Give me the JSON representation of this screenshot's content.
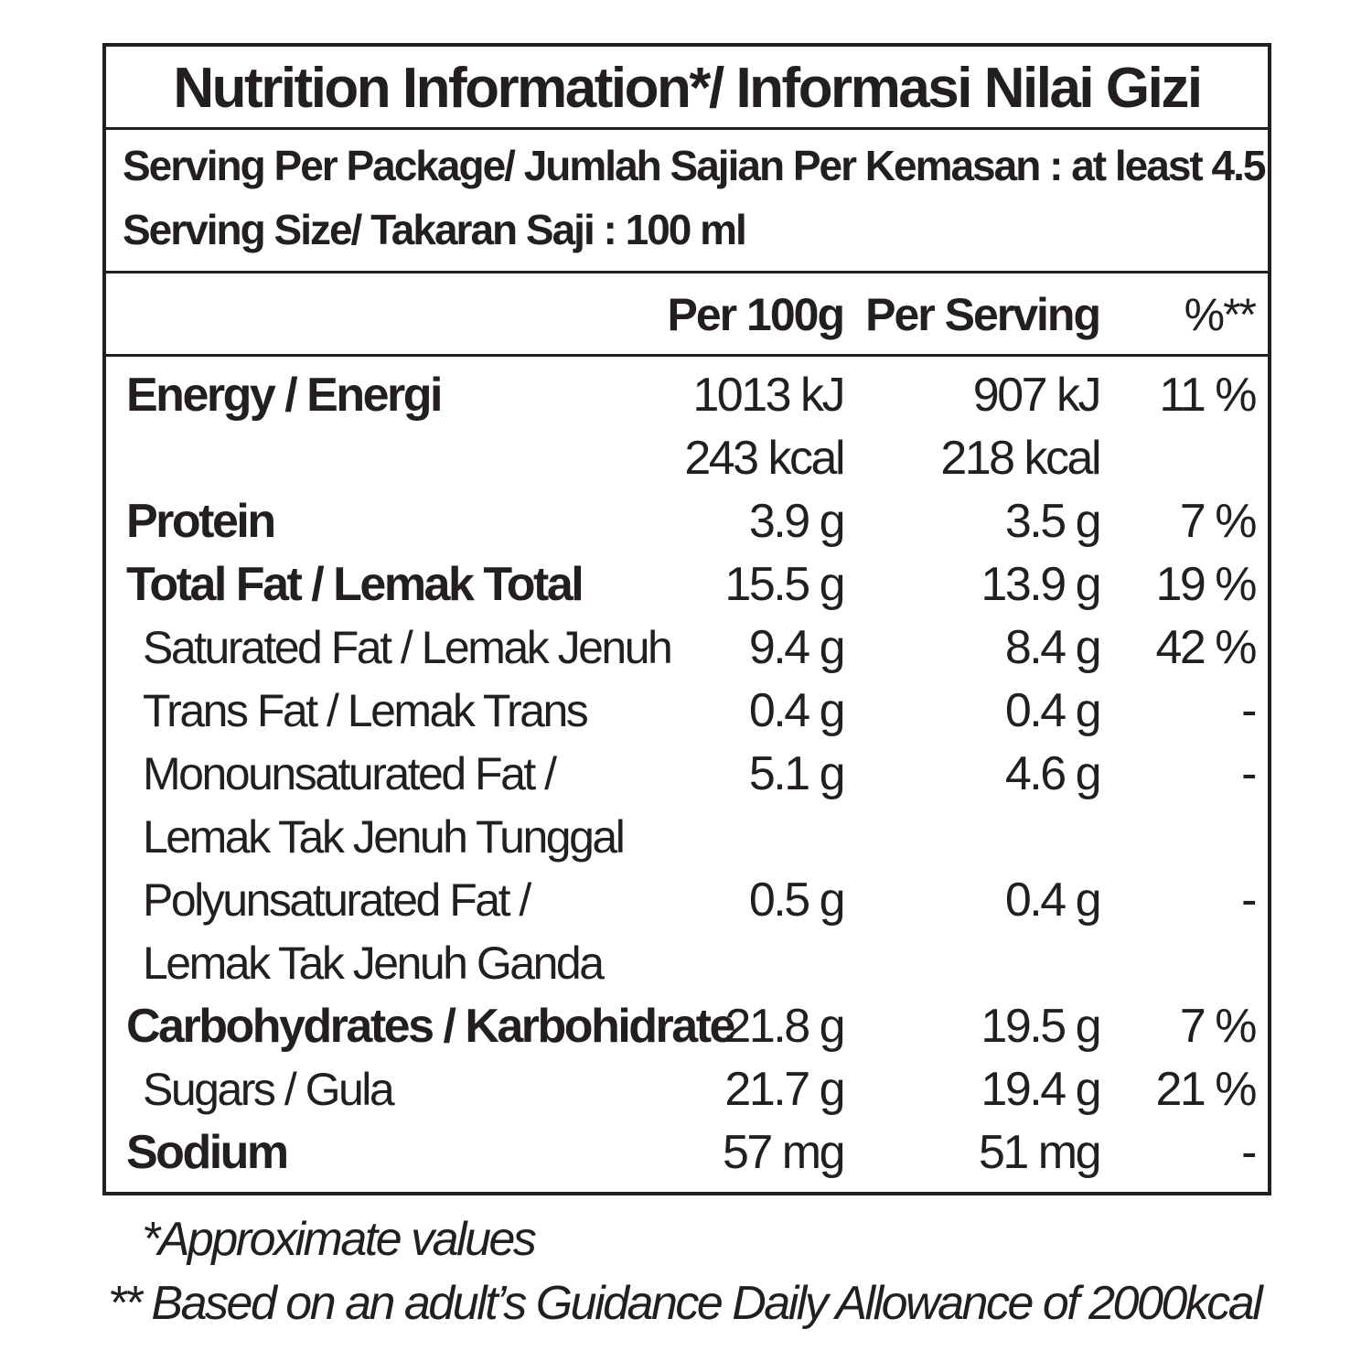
{
  "title": "Nutrition Information*/  Informasi Nilai Gizi",
  "serving_per_package": "Serving Per Package/ Jumlah Sajian Per Kemasan : at least 4.5",
  "serving_size": "Serving Size/ Takaran Saji : 100 ml",
  "columns": {
    "per100": "Per 100g",
    "per_serving": "Per Serving",
    "percent": "%**"
  },
  "rows": [
    {
      "label": "Energy / Energi",
      "per100": "1013 kJ",
      "serving": "907 kJ",
      "pct": "11 %"
    },
    {
      "label": "",
      "per100": "243 kcal",
      "serving": "218 kcal",
      "pct": ""
    },
    {
      "label": "Protein",
      "per100": "3.9 g",
      "serving": "3.5 g",
      "pct": "7 %"
    },
    {
      "label": "Total Fat / Lemak Total",
      "per100": "15.5 g",
      "serving": "13.9 g",
      "pct": "19 %"
    },
    {
      "label": "Saturated Fat / Lemak Jenuh",
      "per100": "9.4 g",
      "serving": "8.4 g",
      "pct": "42 %"
    },
    {
      "label": "Trans Fat / Lemak Trans",
      "per100": "0.4 g",
      "serving": "0.4 g",
      "pct": "-"
    },
    {
      "label": "Monounsaturated Fat /",
      "per100": "5.1 g",
      "serving": "4.6 g",
      "pct": "-"
    },
    {
      "label": "Lemak Tak Jenuh Tunggal",
      "per100": "",
      "serving": "",
      "pct": ""
    },
    {
      "label": "Polyunsaturated Fat /",
      "per100": "0.5 g",
      "serving": "0.4 g",
      "pct": "-"
    },
    {
      "label": "Lemak Tak Jenuh Ganda",
      "per100": "",
      "serving": "",
      "pct": ""
    },
    {
      "label": "Carbohydrates / Karbohidrate",
      "per100": "21.8 g",
      "serving": "19.5 g",
      "pct": "7 %"
    },
    {
      "label": "Sugars / Gula",
      "per100": "21.7 g",
      "serving": "19.4 g",
      "pct": "21 %"
    },
    {
      "label": "Sodium",
      "per100": "57 mg",
      "serving": "51 mg",
      "pct": "-"
    }
  ],
  "footnotes": {
    "approx": "*Approximate values",
    "gda": "** Based on an adult’s Guidance Daily Allowance of 2000kcal"
  }
}
